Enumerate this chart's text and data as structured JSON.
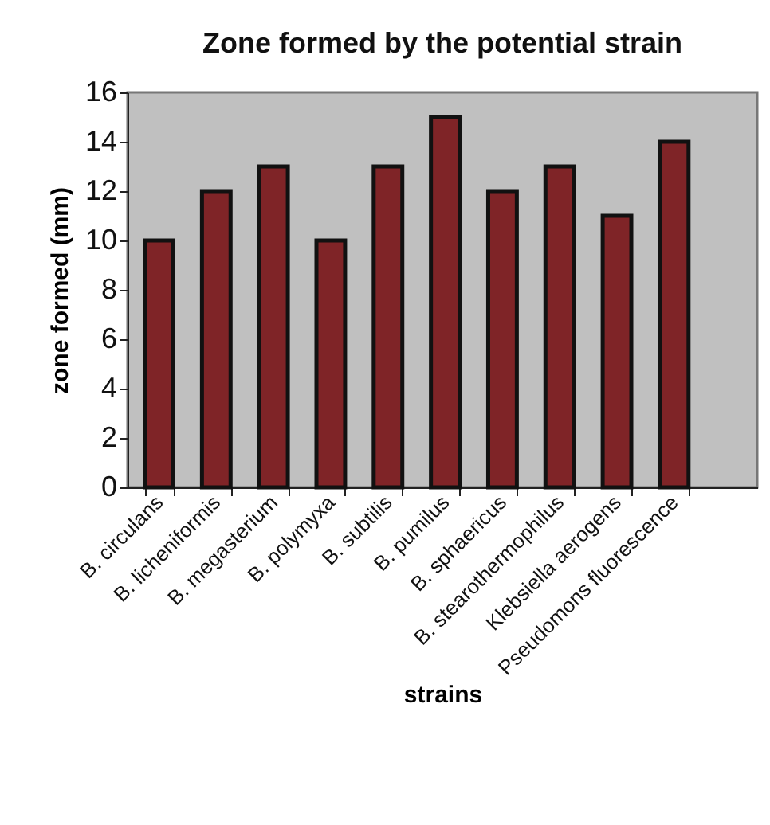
{
  "chart_data": {
    "type": "bar",
    "title": "Zone formed by the potential strain",
    "xlabel": "strains",
    "ylabel": "zone formed (mm)",
    "categories": [
      "B. circulans",
      "B. licheniformis",
      "B. megasterium",
      "B. polymyxa",
      "B. subtilis",
      "B. pumilus",
      "B. sphaericus",
      "B. stearothermophilus",
      "Klebsiella aerogens",
      "Pseudomons fluorescence"
    ],
    "values": [
      10,
      12,
      13,
      10,
      13,
      15,
      12,
      13,
      11,
      14
    ],
    "color": "#7f2427",
    "ylim": [
      0,
      16
    ],
    "yticks": [
      0,
      2,
      4,
      6,
      8,
      10,
      12,
      14,
      16
    ]
  }
}
